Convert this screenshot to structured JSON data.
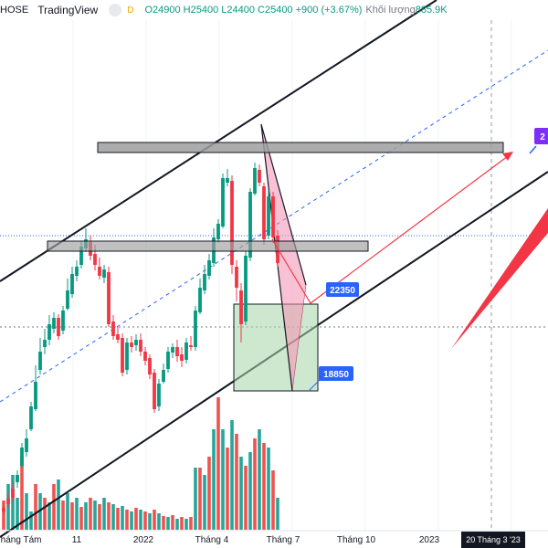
{
  "header": {
    "symbol_suffix": "HOSE",
    "source": "TradingView",
    "interval": "D",
    "ohlc_text": "O24900 H25400 L24400 C25400 +900 (+3.67%)",
    "volume_label": "Khối lượng",
    "volume_value": "885.9K"
  },
  "colors": {
    "up": "#089981",
    "down": "#f23645",
    "volume_up": "#26a69a",
    "volume_down": "#ef5350",
    "channel": "#131722",
    "midline": "#2962ff",
    "target_arrow": "#f23645",
    "label_blue": "#2962ff",
    "label_purple": "#7b2ff7",
    "zone_fill": "#a5d6a7",
    "resistance_fill": "#9e9e9e"
  },
  "chart_data": {
    "type": "candlestick",
    "xaxis_ticks": [
      "Tháng Tám",
      "11",
      "2022",
      "Tháng 4",
      "Tháng 7",
      "Tháng 10",
      "2023"
    ],
    "crosshair_date": "20 Tháng 3 '23",
    "annotations": [
      {
        "text": "22350",
        "color": "#2962ff"
      },
      {
        "text": "18850",
        "color": "#2962ff"
      },
      {
        "text": "2",
        "color": "#7b2ff7"
      }
    ],
    "candles": [
      [
        4,
        556,
        560,
        564,
        554
      ],
      [
        9,
        546,
        552,
        556,
        540
      ],
      [
        14,
        535,
        545,
        550,
        528
      ],
      [
        19,
        528,
        520,
        534,
        515
      ],
      [
        24,
        510,
        490,
        512,
        485
      ],
      [
        29,
        495,
        480,
        500,
        470
      ],
      [
        34,
        470,
        445,
        472,
        440
      ],
      [
        39,
        448,
        418,
        450,
        400
      ],
      [
        44,
        405,
        385,
        410,
        370
      ],
      [
        49,
        380,
        372,
        388,
        360
      ],
      [
        54,
        372,
        355,
        378,
        345
      ],
      [
        59,
        360,
        348,
        365,
        342
      ],
      [
        64,
        348,
        368,
        372,
        344
      ],
      [
        69,
        362,
        340,
        366,
        335
      ],
      [
        74,
        338,
        318,
        340,
        305
      ],
      [
        79,
        322,
        300,
        326,
        292
      ],
      [
        84,
        302,
        292,
        308,
        285
      ],
      [
        89,
        290,
        270,
        294,
        264
      ],
      [
        94,
        272,
        262,
        276,
        250
      ],
      [
        99,
        265,
        280,
        285,
        258
      ],
      [
        104,
        278,
        290,
        296,
        268
      ],
      [
        109,
        292,
        302,
        306,
        282
      ],
      [
        114,
        304,
        295,
        310,
        290
      ],
      [
        119,
        298,
        355,
        358,
        292
      ],
      [
        124,
        352,
        368,
        372,
        345
      ],
      [
        129,
        366,
        372,
        376,
        358
      ],
      [
        134,
        370,
        408,
        412,
        365
      ],
      [
        139,
        405,
        375,
        410,
        370
      ],
      [
        144,
        375,
        380,
        386,
        368
      ],
      [
        149,
        378,
        372,
        384,
        366
      ],
      [
        154,
        372,
        385,
        390,
        365
      ],
      [
        159,
        385,
        395,
        400,
        380
      ],
      [
        164,
        392,
        410,
        415,
        388
      ],
      [
        169,
        408,
        448,
        452,
        404
      ],
      [
        174,
        445,
        420,
        450,
        415
      ],
      [
        179,
        418,
        405,
        420,
        398
      ],
      [
        184,
        404,
        385,
        408,
        380
      ],
      [
        189,
        386,
        380,
        392,
        376
      ],
      [
        194,
        380,
        390,
        396,
        372
      ],
      [
        199,
        388,
        395,
        402,
        380
      ],
      [
        204,
        394,
        375,
        398,
        370
      ],
      [
        209,
        378,
        380,
        384,
        368
      ],
      [
        214,
        380,
        340,
        384,
        335
      ],
      [
        219,
        342,
        315,
        344,
        305
      ],
      [
        224,
        318,
        300,
        322,
        290
      ],
      [
        229,
        302,
        285,
        306,
        278
      ],
      [
        234,
        288,
        260,
        292,
        250
      ],
      [
        239,
        262,
        245,
        266,
        240
      ],
      [
        244,
        248,
        195,
        250,
        190
      ],
      [
        249,
        200,
        195,
        204,
        185
      ],
      [
        254,
        198,
        290,
        300,
        192
      ],
      [
        259,
        292,
        315,
        330,
        285
      ],
      [
        264,
        318,
        355,
        375,
        310
      ],
      [
        269,
        352,
        280,
        356,
        275
      ],
      [
        274,
        282,
        210,
        286,
        206
      ],
      [
        279,
        212,
        184,
        214,
        178
      ],
      [
        284,
        186,
        200,
        204,
        180
      ],
      [
        289,
        204,
        262,
        268,
        200
      ],
      [
        294,
        258,
        215,
        262,
        208
      ],
      [
        299,
        215,
        260,
        266,
        210
      ],
      [
        304,
        258,
        288,
        292,
        252
      ]
    ],
    "volumes": [
      [
        4,
        548,
        "down"
      ],
      [
        9,
        530,
        "up"
      ],
      [
        14,
        520,
        "up"
      ],
      [
        19,
        545,
        "up"
      ],
      [
        24,
        500,
        "down"
      ],
      [
        29,
        540,
        "up"
      ],
      [
        34,
        560,
        "up"
      ],
      [
        39,
        530,
        "down"
      ],
      [
        44,
        540,
        "up"
      ],
      [
        49,
        545,
        "down"
      ],
      [
        54,
        550,
        "up"
      ],
      [
        59,
        530,
        "down"
      ],
      [
        64,
        525,
        "up"
      ],
      [
        69,
        548,
        "down"
      ],
      [
        74,
        540,
        "up"
      ],
      [
        79,
        550,
        "down"
      ],
      [
        84,
        545,
        "up"
      ],
      [
        89,
        555,
        "down"
      ],
      [
        94,
        550,
        "up"
      ],
      [
        99,
        545,
        "down"
      ],
      [
        104,
        548,
        "up"
      ],
      [
        109,
        552,
        "down"
      ],
      [
        114,
        545,
        "up"
      ],
      [
        119,
        550,
        "down"
      ],
      [
        124,
        552,
        "up"
      ],
      [
        129,
        556,
        "down"
      ],
      [
        134,
        554,
        "up"
      ],
      [
        139,
        558,
        "down"
      ],
      [
        144,
        560,
        "up"
      ],
      [
        149,
        556,
        "down"
      ],
      [
        154,
        558,
        "up"
      ],
      [
        159,
        560,
        "down"
      ],
      [
        164,
        562,
        "up"
      ],
      [
        169,
        558,
        "down"
      ],
      [
        174,
        562,
        "up"
      ],
      [
        179,
        565,
        "down"
      ],
      [
        184,
        566,
        "up"
      ],
      [
        189,
        564,
        "down"
      ],
      [
        194,
        568,
        "up"
      ],
      [
        199,
        566,
        "down"
      ],
      [
        204,
        568,
        "up"
      ],
      [
        209,
        566,
        "down"
      ],
      [
        214,
        512,
        "up"
      ],
      [
        219,
        512,
        "down"
      ],
      [
        224,
        520,
        "up"
      ],
      [
        229,
        500,
        "down"
      ],
      [
        234,
        470,
        "up"
      ],
      [
        239,
        435,
        "down"
      ],
      [
        244,
        470,
        "up"
      ],
      [
        249,
        490,
        "down"
      ],
      [
        254,
        460,
        "up"
      ],
      [
        259,
        475,
        "down"
      ],
      [
        264,
        500,
        "up"
      ],
      [
        269,
        510,
        "down"
      ],
      [
        274,
        495,
        "up"
      ],
      [
        279,
        480,
        "down"
      ],
      [
        284,
        470,
        "up"
      ],
      [
        289,
        485,
        "down"
      ],
      [
        294,
        490,
        "up"
      ],
      [
        299,
        515,
        "down"
      ],
      [
        304,
        545,
        "up"
      ]
    ]
  }
}
